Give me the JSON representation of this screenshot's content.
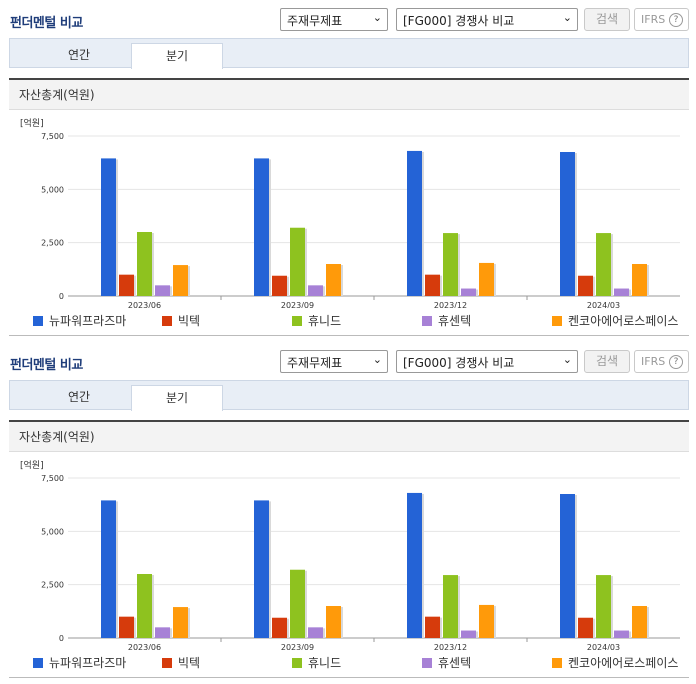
{
  "panels": [
    {
      "title": "펀더멘털 비교",
      "select_type": "주재무제표",
      "select_compare": "[FG000] 경쟁사 비교",
      "search_label": "검색",
      "ifrs_label": "IFRS",
      "help_glyph": "?",
      "tabs": [
        "연간",
        "분기"
      ],
      "active_tab": "분기",
      "section_title": "자산총계(억원)"
    },
    {
      "title": "펀더멘털 비교",
      "select_type": "주재무제표",
      "select_compare": "[FG000] 경쟁사 비교",
      "search_label": "검색",
      "ifrs_label": "IFRS",
      "help_glyph": "?",
      "tabs": [
        "연간",
        "분기"
      ],
      "active_tab": "분기",
      "section_title": "자산총계(억원)"
    }
  ],
  "chart_data": [
    {
      "type": "bar",
      "unit_label": "[억원]",
      "categories": [
        "2023/06",
        "2023/09",
        "2023/12",
        "2024/03"
      ],
      "ylim": [
        0,
        7500
      ],
      "yticks": [
        "7,500",
        "5,000",
        "2,500",
        "0"
      ],
      "ytick_values": [
        7500,
        5000,
        2500,
        0
      ],
      "series": [
        {
          "name": "뉴파워프라즈마",
          "color": "#2463d6",
          "values": [
            6450,
            6450,
            6800,
            6750
          ]
        },
        {
          "name": "빅텍",
          "color": "#d63b0c",
          "values": [
            1000,
            950,
            1000,
            950
          ]
        },
        {
          "name": "휴니드",
          "color": "#8ec21f",
          "values": [
            3000,
            3200,
            2950,
            2950
          ]
        },
        {
          "name": "휴센텍",
          "color": "#a781d6",
          "values": [
            500,
            500,
            350,
            350
          ]
        },
        {
          "name": "켄코아에어로스페이스",
          "color": "#ff9a0a",
          "values": [
            1450,
            1500,
            1550,
            1500
          ]
        }
      ]
    },
    {
      "type": "bar",
      "unit_label": "[억원]",
      "categories": [
        "2023/06",
        "2023/09",
        "2023/12",
        "2024/03"
      ],
      "ylim": [
        0,
        7500
      ],
      "yticks": [
        "7,500",
        "5,000",
        "2,500",
        "0"
      ],
      "ytick_values": [
        7500,
        5000,
        2500,
        0
      ],
      "series": [
        {
          "name": "뉴파워프라즈마",
          "color": "#2463d6",
          "values": [
            6450,
            6450,
            6800,
            6750
          ]
        },
        {
          "name": "빅텍",
          "color": "#d63b0c",
          "values": [
            1000,
            950,
            1000,
            950
          ]
        },
        {
          "name": "휴니드",
          "color": "#8ec21f",
          "values": [
            3000,
            3200,
            2950,
            2950
          ]
        },
        {
          "name": "휴센텍",
          "color": "#a781d6",
          "values": [
            500,
            500,
            350,
            350
          ]
        },
        {
          "name": "켄코아에어로스페이스",
          "color": "#ff9a0a",
          "values": [
            1450,
            1500,
            1550,
            1500
          ]
        }
      ]
    }
  ]
}
